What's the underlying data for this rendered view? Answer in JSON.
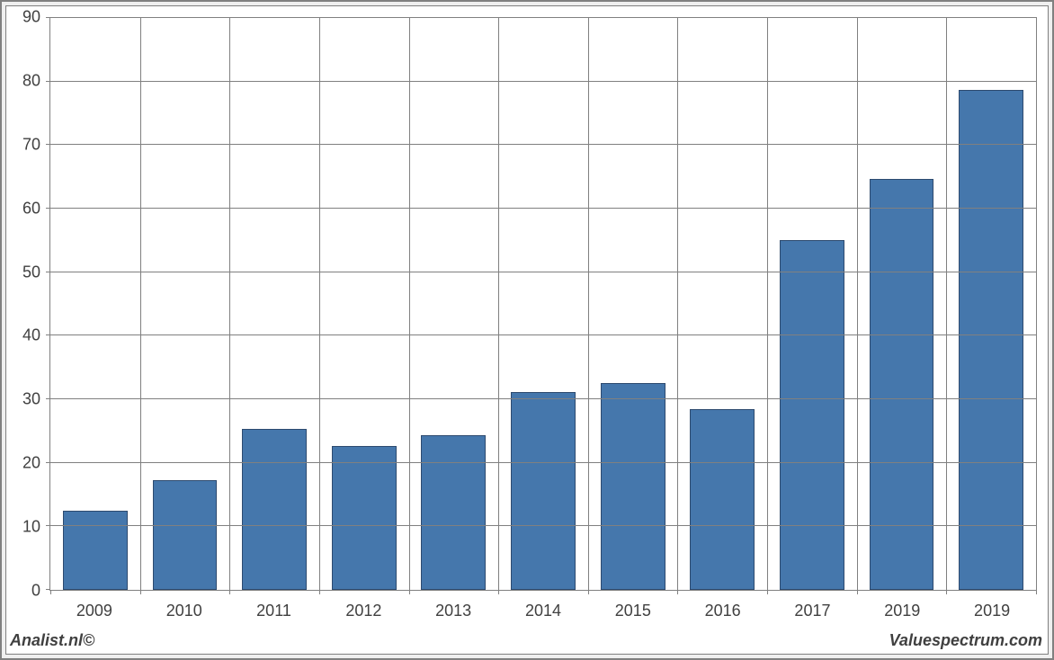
{
  "chart": {
    "type": "bar",
    "categories": [
      "2009",
      "2010",
      "2011",
      "2012",
      "2013",
      "2014",
      "2015",
      "2016",
      "2017",
      "2019",
      "2019"
    ],
    "values": [
      12.5,
      17.3,
      25.3,
      22.7,
      24.4,
      31.1,
      32.5,
      28.5,
      55.1,
      64.7,
      78.7
    ],
    "bar_color": "#4577ac",
    "bar_border_color": "#2d4a6f",
    "ylim": [
      0,
      90
    ],
    "ytick_step": 10,
    "yticks": [
      "0",
      "10",
      "20",
      "30",
      "40",
      "50",
      "60",
      "70",
      "80",
      "90"
    ],
    "background_color": "#ffffff",
    "grid_color": "#808080",
    "bar_width_ratio": 0.72,
    "outer_background": "#f0f0f0",
    "tick_fontsize": 18,
    "tick_color": "#404040"
  },
  "footer": {
    "left": "Analist.nl©",
    "right": "Valuespectrum.com"
  }
}
